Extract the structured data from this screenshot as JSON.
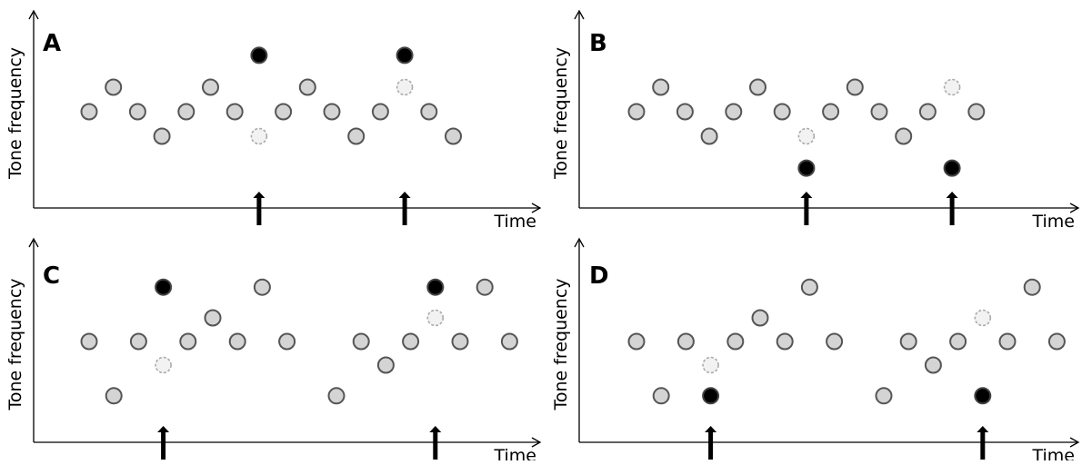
{
  "figure": {
    "ylabel": "Tone frequency",
    "xlabel": "Time",
    "colors": {
      "standard_fill": "#d4d4d4",
      "standard_stroke": "#555555",
      "deviant_fill": "#000000",
      "deviant_stroke": "#444444",
      "omitted_fill": "#f2f2f2",
      "omitted_stroke": "#aaaaaa",
      "arrow": "#000000"
    },
    "panels": [
      {
        "label": "A",
        "tones": [
          {
            "t": 1,
            "f": 0,
            "kind": "standard"
          },
          {
            "t": 2,
            "f": 1,
            "kind": "standard"
          },
          {
            "t": 3,
            "f": 0,
            "kind": "standard"
          },
          {
            "t": 4,
            "f": -1,
            "kind": "standard"
          },
          {
            "t": 5,
            "f": 0,
            "kind": "standard"
          },
          {
            "t": 6,
            "f": 1,
            "kind": "standard"
          },
          {
            "t": 7,
            "f": 0,
            "kind": "standard"
          },
          {
            "t": 8,
            "f": -1,
            "kind": "omitted"
          },
          {
            "t": 8,
            "f": 2.3,
            "kind": "deviant"
          },
          {
            "t": 9,
            "f": 0,
            "kind": "standard"
          },
          {
            "t": 10,
            "f": 1,
            "kind": "standard"
          },
          {
            "t": 11,
            "f": 0,
            "kind": "standard"
          },
          {
            "t": 12,
            "f": -1,
            "kind": "standard"
          },
          {
            "t": 13,
            "f": 0,
            "kind": "standard"
          },
          {
            "t": 14,
            "f": 1,
            "kind": "omitted"
          },
          {
            "t": 14,
            "f": 2.3,
            "kind": "deviant"
          },
          {
            "t": 15,
            "f": 0,
            "kind": "standard"
          },
          {
            "t": 16,
            "f": -1,
            "kind": "standard"
          }
        ],
        "arrows": [
          8,
          14
        ]
      },
      {
        "label": "B",
        "tones": [
          {
            "t": 1,
            "f": 0,
            "kind": "standard"
          },
          {
            "t": 2,
            "f": 1,
            "kind": "standard"
          },
          {
            "t": 3,
            "f": 0,
            "kind": "standard"
          },
          {
            "t": 4,
            "f": -1,
            "kind": "standard"
          },
          {
            "t": 5,
            "f": 0,
            "kind": "standard"
          },
          {
            "t": 6,
            "f": 1,
            "kind": "standard"
          },
          {
            "t": 7,
            "f": 0,
            "kind": "standard"
          },
          {
            "t": 8,
            "f": -1,
            "kind": "omitted"
          },
          {
            "t": 8,
            "f": -2.3,
            "kind": "deviant"
          },
          {
            "t": 9,
            "f": 0,
            "kind": "standard"
          },
          {
            "t": 10,
            "f": 1,
            "kind": "standard"
          },
          {
            "t": 11,
            "f": 0,
            "kind": "standard"
          },
          {
            "t": 12,
            "f": -1,
            "kind": "standard"
          },
          {
            "t": 13,
            "f": 0,
            "kind": "standard"
          },
          {
            "t": 14,
            "f": 1,
            "kind": "omitted"
          },
          {
            "t": 14,
            "f": -2.3,
            "kind": "deviant"
          },
          {
            "t": 15,
            "f": 0,
            "kind": "standard"
          }
        ],
        "arrows": [
          8,
          14
        ]
      },
      {
        "label": "C",
        "tones": [
          {
            "t": 1,
            "f": 0,
            "kind": "standard"
          },
          {
            "t": 2,
            "f": -2.3,
            "kind": "standard"
          },
          {
            "t": 3,
            "f": 0,
            "kind": "standard"
          },
          {
            "t": 4,
            "f": -1,
            "kind": "omitted"
          },
          {
            "t": 4,
            "f": 2.3,
            "kind": "deviant"
          },
          {
            "t": 5,
            "f": 0,
            "kind": "standard"
          },
          {
            "t": 6,
            "f": 1,
            "kind": "standard"
          },
          {
            "t": 7,
            "f": 0,
            "kind": "standard"
          },
          {
            "t": 8,
            "f": 2.3,
            "kind": "standard"
          },
          {
            "t": 9,
            "f": 0,
            "kind": "standard"
          },
          {
            "t": 11,
            "f": -2.3,
            "kind": "standard"
          },
          {
            "t": 12,
            "f": 0,
            "kind": "standard"
          },
          {
            "t": 13,
            "f": -1,
            "kind": "standard"
          },
          {
            "t": 14,
            "f": 0,
            "kind": "standard"
          },
          {
            "t": 15,
            "f": 1,
            "kind": "omitted"
          },
          {
            "t": 15,
            "f": 2.3,
            "kind": "deviant"
          },
          {
            "t": 16,
            "f": 0,
            "kind": "standard"
          },
          {
            "t": 17,
            "f": 2.3,
            "kind": "standard"
          },
          {
            "t": 18,
            "f": 0,
            "kind": "standard"
          }
        ],
        "arrows": [
          4,
          15
        ]
      },
      {
        "label": "D",
        "tones": [
          {
            "t": 1,
            "f": 0,
            "kind": "standard"
          },
          {
            "t": 2,
            "f": -2.3,
            "kind": "standard"
          },
          {
            "t": 3,
            "f": 0,
            "kind": "standard"
          },
          {
            "t": 4,
            "f": -1,
            "kind": "omitted"
          },
          {
            "t": 4,
            "f": -2.3,
            "kind": "deviant"
          },
          {
            "t": 5,
            "f": 0,
            "kind": "standard"
          },
          {
            "t": 6,
            "f": 1,
            "kind": "standard"
          },
          {
            "t": 7,
            "f": 0,
            "kind": "standard"
          },
          {
            "t": 8,
            "f": 2.3,
            "kind": "standard"
          },
          {
            "t": 9,
            "f": 0,
            "kind": "standard"
          },
          {
            "t": 11,
            "f": -2.3,
            "kind": "standard"
          },
          {
            "t": 12,
            "f": 0,
            "kind": "standard"
          },
          {
            "t": 13,
            "f": -1,
            "kind": "standard"
          },
          {
            "t": 14,
            "f": 0,
            "kind": "standard"
          },
          {
            "t": 15,
            "f": 1,
            "kind": "omitted"
          },
          {
            "t": 15,
            "f": -2.3,
            "kind": "deviant"
          },
          {
            "t": 16,
            "f": 0,
            "kind": "standard"
          },
          {
            "t": 17,
            "f": 2.3,
            "kind": "standard"
          },
          {
            "t": 18,
            "f": 0,
            "kind": "standard"
          }
        ],
        "arrows": [
          4,
          15
        ]
      }
    ]
  }
}
